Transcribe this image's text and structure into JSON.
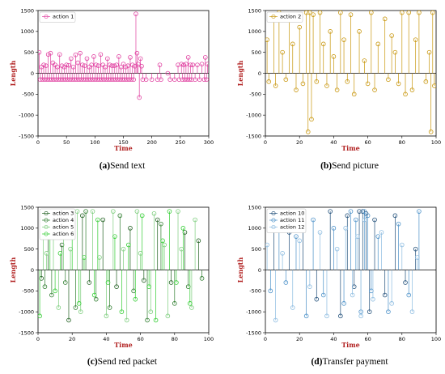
{
  "charts": [
    {
      "caption_label": "(a)",
      "caption_text": "Send text",
      "xlabel": "Time",
      "ylabel": "Length",
      "xlim": [
        0,
        300
      ],
      "ylim": [
        -1500,
        1500
      ],
      "xticks": [
        "0",
        "50",
        "100",
        "150",
        "200",
        "250",
        "300"
      ],
      "yticks": [
        "1500",
        "1000",
        "500",
        "0",
        "-500",
        "-1000",
        "-1500"
      ],
      "legend": [
        "action 1"
      ]
    },
    {
      "caption_label": "(b)",
      "caption_text": "Send picture",
      "xlabel": "Time",
      "ylabel": "Length",
      "xlim": [
        0,
        100
      ],
      "ylim": [
        -1500,
        1500
      ],
      "xticks": [
        "0",
        "20",
        "40",
        "60",
        "80",
        "100"
      ],
      "yticks": [
        "1500",
        "1000",
        "500",
        "0",
        "-500",
        "-1000",
        "-1500"
      ],
      "legend": [
        "action 2"
      ]
    },
    {
      "caption_label": "(c)",
      "caption_text": "Send red packet",
      "xlabel": "Time",
      "ylabel": "Length",
      "xlim": [
        0,
        100
      ],
      "ylim": [
        -1500,
        1500
      ],
      "xticks": [
        "0",
        "20",
        "40",
        "60",
        "80",
        "100"
      ],
      "yticks": [
        "1500",
        "1000",
        "500",
        "0",
        "-500",
        "-1000",
        "-1500"
      ],
      "legend": [
        "action 3",
        "action 4",
        "action 5",
        "action 6"
      ]
    },
    {
      "caption_label": "(d)",
      "caption_text": "Transfer payment",
      "xlabel": "Time",
      "ylabel": "Length",
      "xlim": [
        0,
        100
      ],
      "ylim": [
        -1500,
        1500
      ],
      "xticks": [
        "0",
        "20",
        "40",
        "60",
        "80",
        "100"
      ],
      "yticks": [
        "1500",
        "1000",
        "500",
        "0",
        "-500",
        "-1000",
        "-1500"
      ],
      "legend": [
        "action 10",
        "action 11",
        "action 12"
      ]
    }
  ],
  "chart_data": [
    {
      "type": "scatter",
      "style": "stem",
      "title": "",
      "xlabel": "Time",
      "ylabel": "Length",
      "xlim": [
        0,
        300
      ],
      "ylim": [
        -1500,
        1500
      ],
      "legend_position": "top-left",
      "series": [
        {
          "name": "action 1",
          "color": "#e040a0",
          "x": [
            2,
            6,
            10,
            14,
            18,
            22,
            26,
            30,
            34,
            38,
            42,
            46,
            50,
            54,
            58,
            62,
            66,
            70,
            74,
            78,
            82,
            86,
            90,
            94,
            98,
            102,
            106,
            110,
            114,
            118,
            122,
            126,
            130,
            134,
            138,
            142,
            146,
            150,
            154,
            158,
            162,
            166,
            170,
            172,
            174,
            176,
            180,
            182,
            214,
            228,
            246,
            252,
            256,
            260,
            264,
            268,
            272,
            280,
            288,
            294,
            298,
            4,
            8,
            12,
            16,
            20,
            24,
            28,
            32,
            36,
            40,
            44,
            48,
            52,
            56,
            60,
            64,
            68,
            72,
            76,
            80,
            84,
            88,
            92,
            96,
            100,
            104,
            108,
            112,
            116,
            120,
            124,
            128,
            132,
            136,
            140,
            144,
            148,
            152,
            156,
            160,
            164,
            168,
            178,
            184,
            190,
            200,
            210,
            216,
            232,
            240,
            248,
            254,
            258,
            262,
            266,
            270,
            276,
            284,
            292,
            296
          ],
          "y": [
            500,
            150,
            200,
            180,
            450,
            480,
            250,
            200,
            150,
            450,
            180,
            150,
            200,
            190,
            350,
            150,
            440,
            250,
            480,
            200,
            180,
            350,
            150,
            200,
            400,
            200,
            180,
            450,
            200,
            150,
            350,
            200,
            180,
            180,
            200,
            400,
            150,
            220,
            150,
            180,
            380,
            200,
            170,
            1420,
            480,
            220,
            350,
            170,
            200,
            0,
            200,
            220,
            200,
            220,
            380,
            200,
            200,
            200,
            220,
            380,
            220,
            -150,
            -150,
            -150,
            -150,
            -150,
            -150,
            -150,
            -150,
            -150,
            -150,
            -150,
            -150,
            -150,
            -150,
            -150,
            -150,
            -150,
            -150,
            -150,
            -150,
            -150,
            -150,
            -150,
            -150,
            -150,
            -150,
            -150,
            -150,
            -150,
            -150,
            -150,
            -150,
            -150,
            -150,
            -150,
            -150,
            -150,
            -150,
            -150,
            -150,
            -150,
            -150,
            -580,
            -150,
            -150,
            -150,
            -150,
            -150,
            -150,
            -150,
            -150,
            -150,
            -150,
            -150,
            -150,
            -150,
            -150,
            -150,
            -150,
            -150
          ]
        }
      ]
    },
    {
      "type": "scatter",
      "style": "stem",
      "title": "",
      "xlabel": "Time",
      "ylabel": "Length",
      "xlim": [
        0,
        100
      ],
      "ylim": [
        -1500,
        1500
      ],
      "legend_position": "top-left",
      "series": [
        {
          "name": "action 2",
          "color": "#c8960c",
          "x": [
            1,
            2,
            5,
            6,
            8,
            10,
            12,
            14,
            16,
            18,
            20,
            22,
            24,
            25,
            26,
            27,
            28,
            30,
            32,
            34,
            36,
            38,
            40,
            42,
            44,
            46,
            48,
            50,
            52,
            55,
            58,
            60,
            62,
            64,
            66,
            70,
            72,
            74,
            76,
            78,
            80,
            82,
            84,
            86,
            88,
            90,
            94,
            96,
            97,
            98,
            99
          ],
          "y": [
            800,
            -200,
            1400,
            -300,
            1450,
            500,
            -150,
            1400,
            700,
            -400,
            1100,
            -250,
            1450,
            -1400,
            1450,
            -1100,
            1400,
            -200,
            1450,
            700,
            -300,
            1000,
            400,
            -400,
            1450,
            800,
            -200,
            1400,
            -500,
            1000,
            300,
            -250,
            1450,
            -400,
            700,
            1300,
            -150,
            900,
            500,
            -250,
            1450,
            -500,
            1450,
            -400,
            800,
            1450,
            -200,
            500,
            -1400,
            1450,
            -300
          ]
        }
      ]
    },
    {
      "type": "scatter",
      "style": "stem",
      "title": "",
      "xlabel": "Time",
      "ylabel": "Length",
      "xlim": [
        0,
        100
      ],
      "ylim": [
        -1500,
        1500
      ],
      "legend_position": "top-left",
      "series": [
        {
          "name": "action 3",
          "color": "#1f5f1f",
          "x": [
            2,
            6,
            14,
            18,
            26,
            30,
            38,
            46,
            54,
            62,
            70,
            78,
            86,
            94
          ],
          "y": [
            -200,
            1100,
            600,
            -1200,
            1300,
            -300,
            1200,
            -400,
            1000,
            -250,
            1200,
            -300,
            900,
            700
          ]
        },
        {
          "name": "action 4",
          "color": "#2e7d2e",
          "x": [
            4,
            8,
            16,
            22,
            28,
            34,
            42,
            48,
            56,
            64,
            72,
            80,
            88,
            96
          ],
          "y": [
            -400,
            -600,
            -300,
            -900,
            1400,
            -700,
            -900,
            1300,
            -500,
            -1200,
            1100,
            -800,
            -400,
            -200
          ]
        },
        {
          "name": "action 5",
          "color": "#7ccd7c",
          "x": [
            3,
            5,
            9,
            12,
            15,
            19,
            23,
            25,
            32,
            36,
            40,
            44,
            50,
            52,
            58,
            60,
            66,
            68,
            74,
            76,
            82,
            84,
            90,
            92
          ],
          "y": [
            1350,
            400,
            1400,
            -900,
            1300,
            500,
            1400,
            -1000,
            1400,
            300,
            -1100,
            1400,
            500,
            -1200,
            1400,
            400,
            -1000,
            1350,
            600,
            -1100,
            1400,
            500,
            -900,
            1200
          ]
        },
        {
          "name": "action 6",
          "color": "#32cd32",
          "x": [
            1,
            7,
            10,
            13,
            20,
            24,
            27,
            33,
            35,
            41,
            45,
            49,
            53,
            57,
            61,
            65,
            69,
            73,
            77,
            81,
            85,
            89
          ],
          "y": [
            -1100,
            1200,
            -500,
            400,
            1350,
            -800,
            300,
            -600,
            1200,
            -300,
            800,
            -1000,
            600,
            -700,
            1300,
            -400,
            -1200,
            700,
            1400,
            -300,
            1000,
            -800
          ]
        }
      ]
    },
    {
      "type": "scatter",
      "style": "stem",
      "title": "",
      "xlabel": "Time",
      "ylabel": "Length",
      "xlim": [
        0,
        100
      ],
      "ylim": [
        -1500,
        1500
      ],
      "legend_position": "top-left",
      "series": [
        {
          "name": "action 10",
          "color": "#1f4e79",
          "x": [
            5,
            14,
            22,
            30,
            38,
            44,
            48,
            52,
            55,
            57,
            59,
            61,
            64,
            70,
            76,
            82,
            88
          ],
          "y": [
            1200,
            900,
            1300,
            -700,
            1400,
            -1100,
            1300,
            -400,
            1400,
            1400,
            1350,
            -1000,
            1200,
            -600,
            1300,
            -300,
            500
          ]
        },
        {
          "name": "action 11",
          "color": "#4a90c8",
          "x": [
            3,
            8,
            12,
            18,
            24,
            28,
            34,
            40,
            46,
            50,
            53,
            56,
            58,
            60,
            62,
            66,
            72,
            78,
            84,
            90
          ],
          "y": [
            -500,
            1000,
            -300,
            800,
            -1100,
            1200,
            -600,
            1000,
            -800,
            1400,
            1200,
            -1000,
            1400,
            1300,
            -500,
            800,
            -1000,
            1100,
            -600,
            1400
          ]
        },
        {
          "name": "action 12",
          "color": "#8bbbe0",
          "x": [
            1,
            6,
            10,
            16,
            20,
            26,
            32,
            36,
            42,
            47,
            51,
            54,
            56,
            58,
            63,
            68,
            74,
            80,
            86,
            89
          ],
          "y": [
            600,
            -1200,
            400,
            -900,
            700,
            -400,
            900,
            -1100,
            500,
            1000,
            -600,
            800,
            -1100,
            1200,
            -700,
            900,
            -800,
            600,
            -1000,
            300
          ]
        }
      ]
    }
  ]
}
